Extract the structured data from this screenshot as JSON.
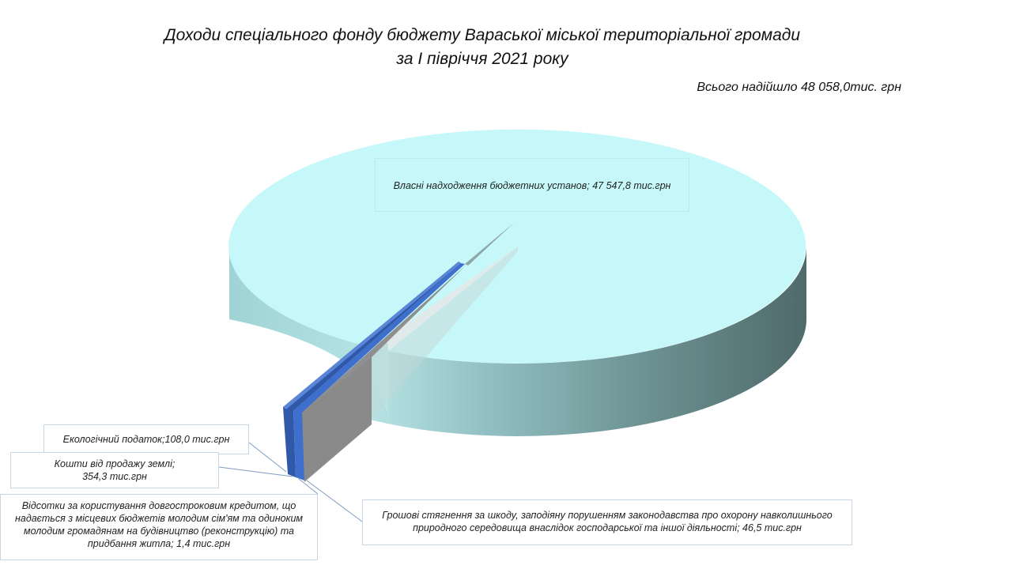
{
  "title_line1": "Доходи спеціального фонду бюджету Вараської міської  територіальної громади",
  "title_line2": "за І півріччя 2021 року",
  "total_label": "Всього надійшло  48 058,0тис. грн",
  "labels": {
    "main": "Власні надходження бюджетних установ; 47 547,8 тис.грн",
    "eco": "Екологічний податок;108,0 тис.грн",
    "land_1": "Кошти від продажу землі;",
    "land_2": "354,3 тис.грн",
    "kredit_1": "Відсотки за користування довгостроковим кредитом, що",
    "kredit_2": "надається з місцевих бюджетів молодим сім'ям та одиноким",
    "kredit_3": "молодим громадянам на будівництво (реконструкцію) та",
    "kredit_4": "придбання житла; 1,4 тис.грн",
    "shkoda_1": "Грошові стягнення за шкоду, заподіяну порушенням законодавства про охорону навколишнього",
    "shkoda_2": "природного середовища внаслідок господарської та іншої діяльності; 46,5 тис.грн"
  },
  "chart_data": {
    "type": "pie",
    "title": "Доходи спеціального фонду бюджету Вараської міської  територіальної громади за І півріччя 2021 року",
    "subtitle": "Всього надійшло  48 058,0тис. грн",
    "unit": "тис.грн",
    "style": "3d-exploded",
    "slices": [
      {
        "name": "Власні надходження бюджетних установ",
        "value": 47547.8,
        "color": "#c6f8f9"
      },
      {
        "name": "Грошові стягнення за шкоду, заподіяну порушенням законодавства про охорону навколишнього природного середовища внаслідок господарської та іншої діяльності",
        "value": 46.5,
        "color": "#a5a5a5"
      },
      {
        "name": "Відсотки за користування довгостроковим кредитом, що надається з місцевих бюджетів молодим сім'ям та одиноким молодим громадянам на будівництво (реконструкцію) та придбання житла",
        "value": 1.4,
        "color": "#4a6fb5"
      },
      {
        "name": "Кошти від продажу землі",
        "value": 354.3,
        "color": "#3d6bc4"
      },
      {
        "name": "Екологічний податок",
        "value": 108.0,
        "color": "#2f5597"
      }
    ]
  }
}
